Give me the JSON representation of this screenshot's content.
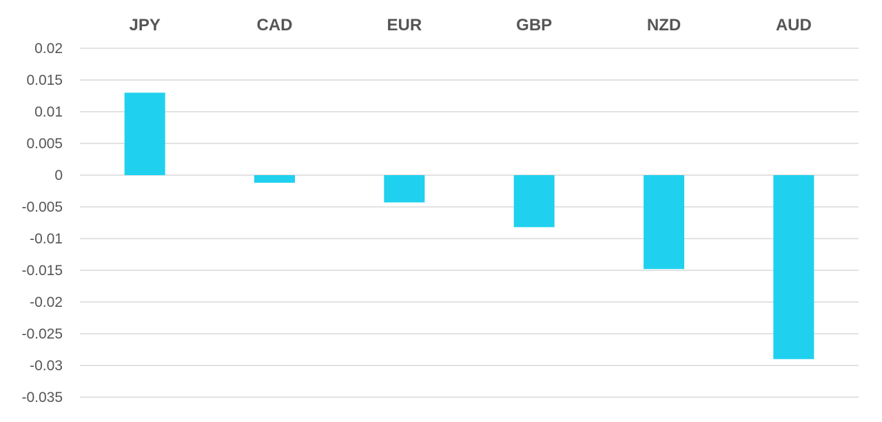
{
  "chart_data": {
    "type": "bar",
    "title": "",
    "xlabel": "",
    "ylabel": "",
    "categories": [
      "JPY",
      "CAD",
      "EUR",
      "GBP",
      "NZD",
      "AUD"
    ],
    "values": [
      0.013,
      -0.0012,
      -0.0043,
      -0.0082,
      -0.0148,
      -0.029
    ],
    "ylim": [
      -0.035,
      0.02
    ],
    "yticks": [
      0.02,
      0.015,
      0.01,
      0.005,
      0,
      -0.005,
      -0.01,
      -0.015,
      -0.02,
      -0.025,
      -0.03,
      -0.035
    ],
    "ytick_labels": [
      "0.02",
      "0.015",
      "0.01",
      "0.005",
      "0",
      "-0.005",
      "-0.01",
      "-0.015",
      "-0.02",
      "-0.025",
      "-0.03",
      "-0.035"
    ],
    "category_axis_position": "top",
    "grid": true,
    "legend": "none",
    "bar_color": "#1fd1ee",
    "grid_color": "#d9d9d9",
    "text_color": "#555555"
  }
}
